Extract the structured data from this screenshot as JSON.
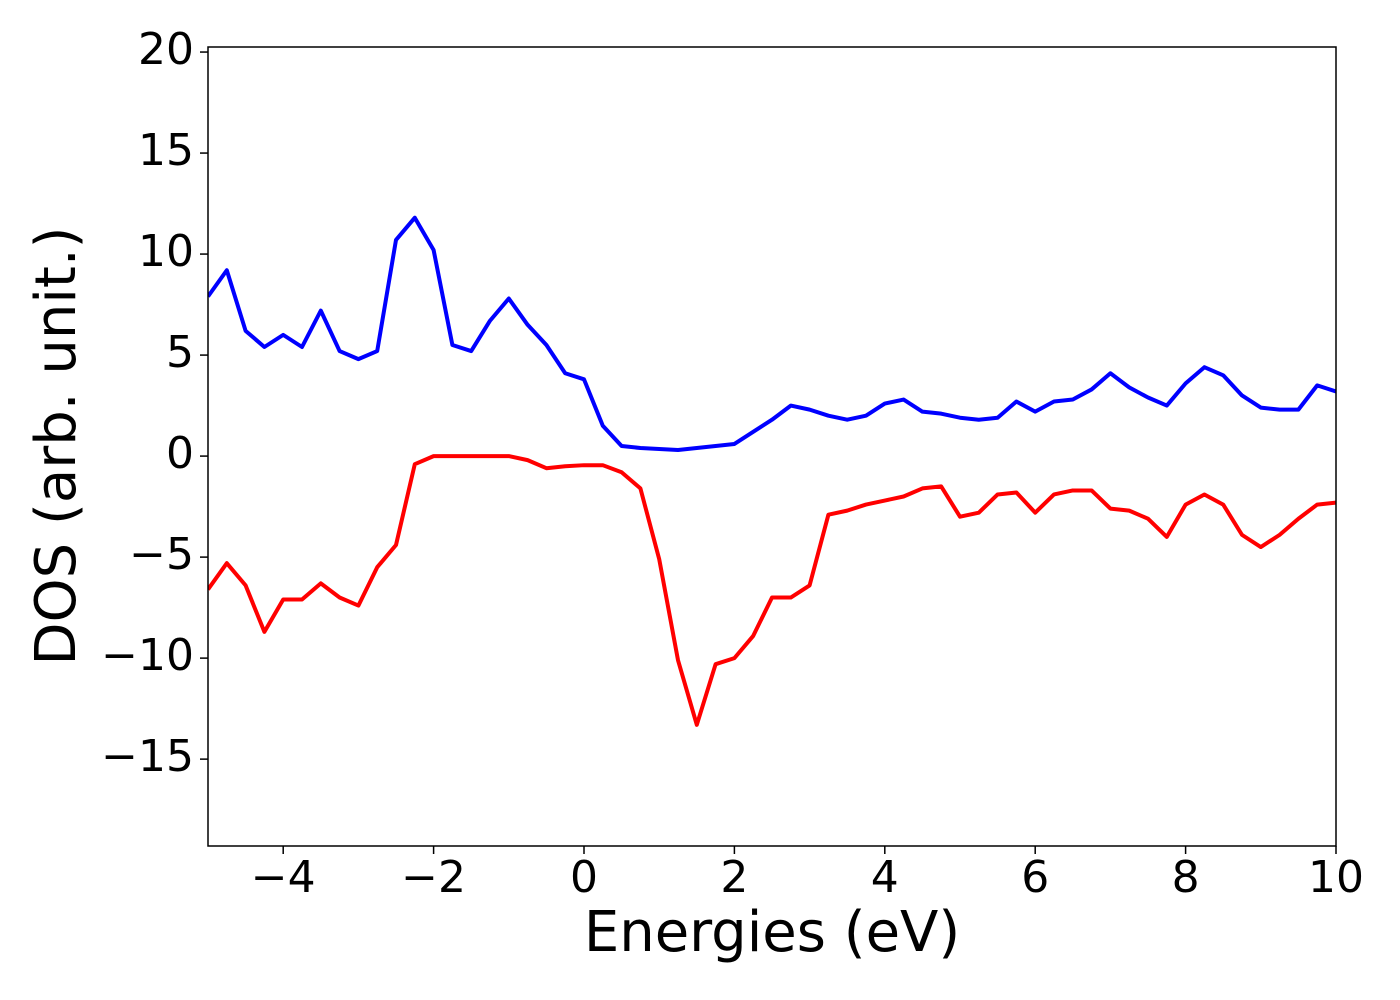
{
  "chart_data": {
    "type": "line",
    "xlabel": "Energies (eV)",
    "ylabel": "DOS (arb. unit.)",
    "x": [
      -5,
      -4.75,
      -4.5,
      -4.25,
      -4,
      -3.75,
      -3.5,
      -3.25,
      -3,
      -2.75,
      -2.5,
      -2.25,
      -2,
      -1.75,
      -1.5,
      -1.25,
      -1,
      -0.75,
      -0.5,
      -0.25,
      0,
      0.25,
      0.5,
      0.75,
      1,
      1.25,
      1.5,
      1.75,
      2,
      2.25,
      2.5,
      2.75,
      3,
      3.25,
      3.5,
      3.75,
      4,
      4.25,
      4.5,
      4.75,
      5,
      5.25,
      5.5,
      5.75,
      6,
      6.25,
      6.5,
      6.75,
      7,
      7.25,
      7.5,
      7.75,
      8,
      8.25,
      8.5,
      8.75,
      9,
      9.25,
      9.5,
      9.75,
      10
    ],
    "series": [
      {
        "color": "#0000ff",
        "values": [
          7.9,
          9.2,
          6.2,
          5.4,
          6.0,
          5.4,
          7.2,
          5.2,
          4.8,
          5.2,
          10.7,
          11.8,
          10.2,
          5.5,
          5.2,
          6.7,
          7.8,
          6.5,
          5.5,
          4.1,
          3.8,
          1.5,
          0.5,
          0.4,
          0.35,
          0.3,
          0.4,
          0.5,
          0.6,
          1.2,
          1.8,
          2.5,
          2.3,
          2.0,
          1.8,
          2.0,
          2.6,
          2.8,
          2.2,
          2.1,
          1.9,
          1.8,
          1.9,
          2.7,
          2.2,
          2.7,
          2.8,
          3.3,
          4.1,
          3.4,
          2.9,
          2.5,
          3.6,
          4.4,
          4.0,
          3.0,
          2.4,
          2.3,
          2.3,
          3.5,
          3.2
        ]
      },
      {
        "color": "#ff0000",
        "values": [
          -6.6,
          -5.3,
          -6.4,
          -8.7,
          -7.1,
          -7.1,
          -6.3,
          -7.0,
          -7.4,
          -5.5,
          -4.4,
          -0.4,
          0,
          0,
          0,
          0,
          0,
          -0.2,
          -0.6,
          -0.5,
          -0.45,
          -0.45,
          -0.8,
          -1.6,
          -5.1,
          -10.1,
          -13.3,
          -10.3,
          -10.0,
          -8.9,
          -7.0,
          -7.0,
          -6.4,
          -2.9,
          -2.7,
          -2.4,
          -2.2,
          -2.0,
          -1.6,
          -1.5,
          -3.0,
          -2.8,
          -1.9,
          -1.8,
          -2.8,
          -1.9,
          -1.7,
          -1.7,
          -2.6,
          -2.7,
          -3.1,
          -4.0,
          -2.4,
          -1.9,
          -2.4,
          -3.9,
          -4.5,
          -3.9,
          -3.1,
          -2.4,
          -2.3
        ]
      }
    ],
    "xlim": [
      -5,
      10
    ],
    "xticks": [
      {
        "value": -4,
        "label": "−4"
      },
      {
        "value": -2,
        "label": "−2"
      },
      0,
      2,
      4,
      6,
      8,
      10
    ],
    "ylim": [
      -19.3,
      20.25
    ],
    "yticks": [
      {
        "value": -15,
        "label": "−15"
      },
      {
        "value": -10,
        "label": "−10"
      },
      {
        "value": -5,
        "label": "−5"
      },
      0,
      5,
      10,
      15,
      20
    ],
    "grid": false
  }
}
